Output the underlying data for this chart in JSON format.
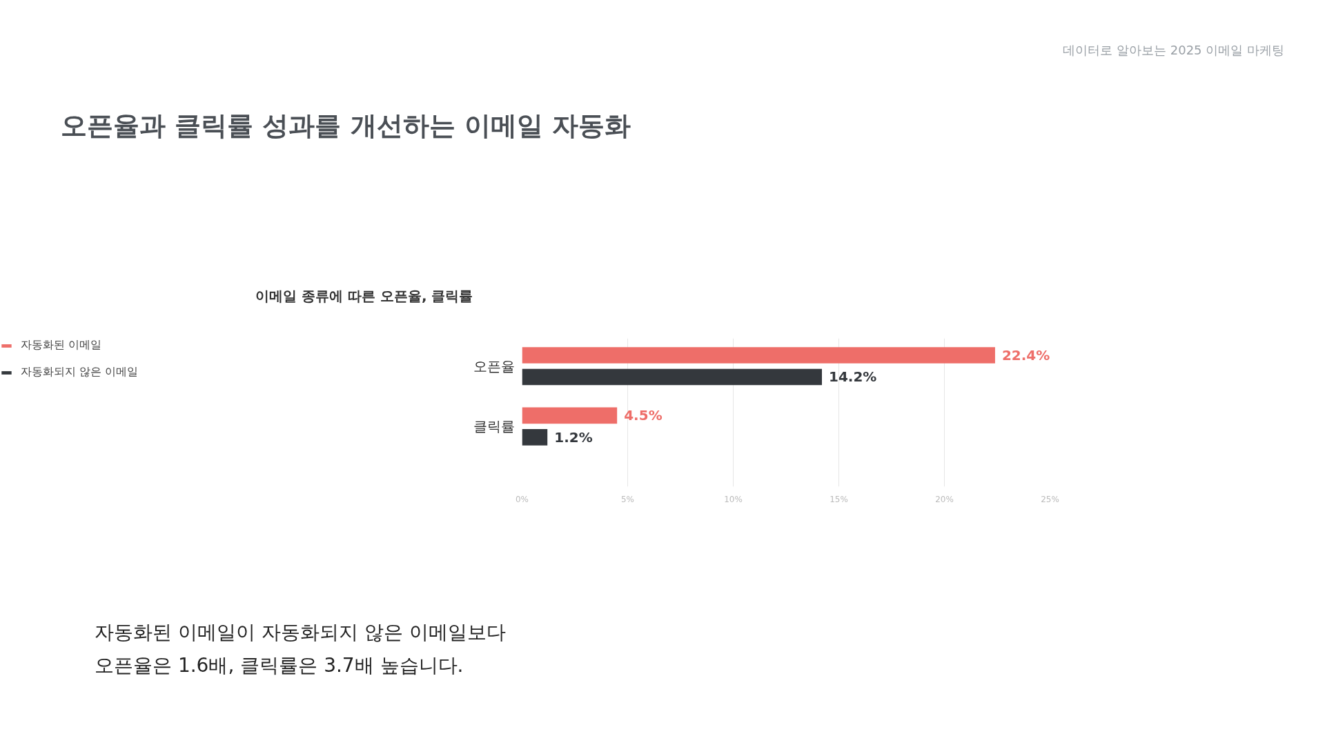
{
  "chart_data": {
    "type": "bar",
    "orientation": "horizontal",
    "title": "오픈율과 클릭률 성과를 개선하는 이메일 자동화",
    "subtitle": "이메일 종류에 따른 오픈율, 클릭률",
    "annotations": [
      "데이터로 알아보는 2025 이메일 마케팅",
      "자동화된 이메일이 자동화되지 않은 이메일보다",
      "오픈율은 1.6배, 클릭률은 3.7배 높습니다."
    ],
    "categories": [
      "오픈율",
      "클릭률"
    ],
    "series": [
      {
        "name": "자동화된 이메일",
        "color": "#ee6e69",
        "values": [
          22.4,
          4.5
        ],
        "value_labels": [
          "22.4%",
          "4.5%"
        ]
      },
      {
        "name": "자동화되지 않은 이메일",
        "color": "#34383d",
        "values": [
          14.2,
          1.2
        ],
        "value_labels": [
          "14.2%",
          "1.2%"
        ]
      }
    ],
    "xlim": [
      0,
      25
    ],
    "xticks": [
      {
        "value": 0,
        "label": "0%"
      },
      {
        "value": 5,
        "label": "5%"
      },
      {
        "value": 10,
        "label": "10%"
      },
      {
        "value": 15,
        "label": "15%"
      },
      {
        "value": 20,
        "label": "20%"
      },
      {
        "value": 25,
        "label": "25%"
      }
    ],
    "grid": "x",
    "legend": "left"
  }
}
